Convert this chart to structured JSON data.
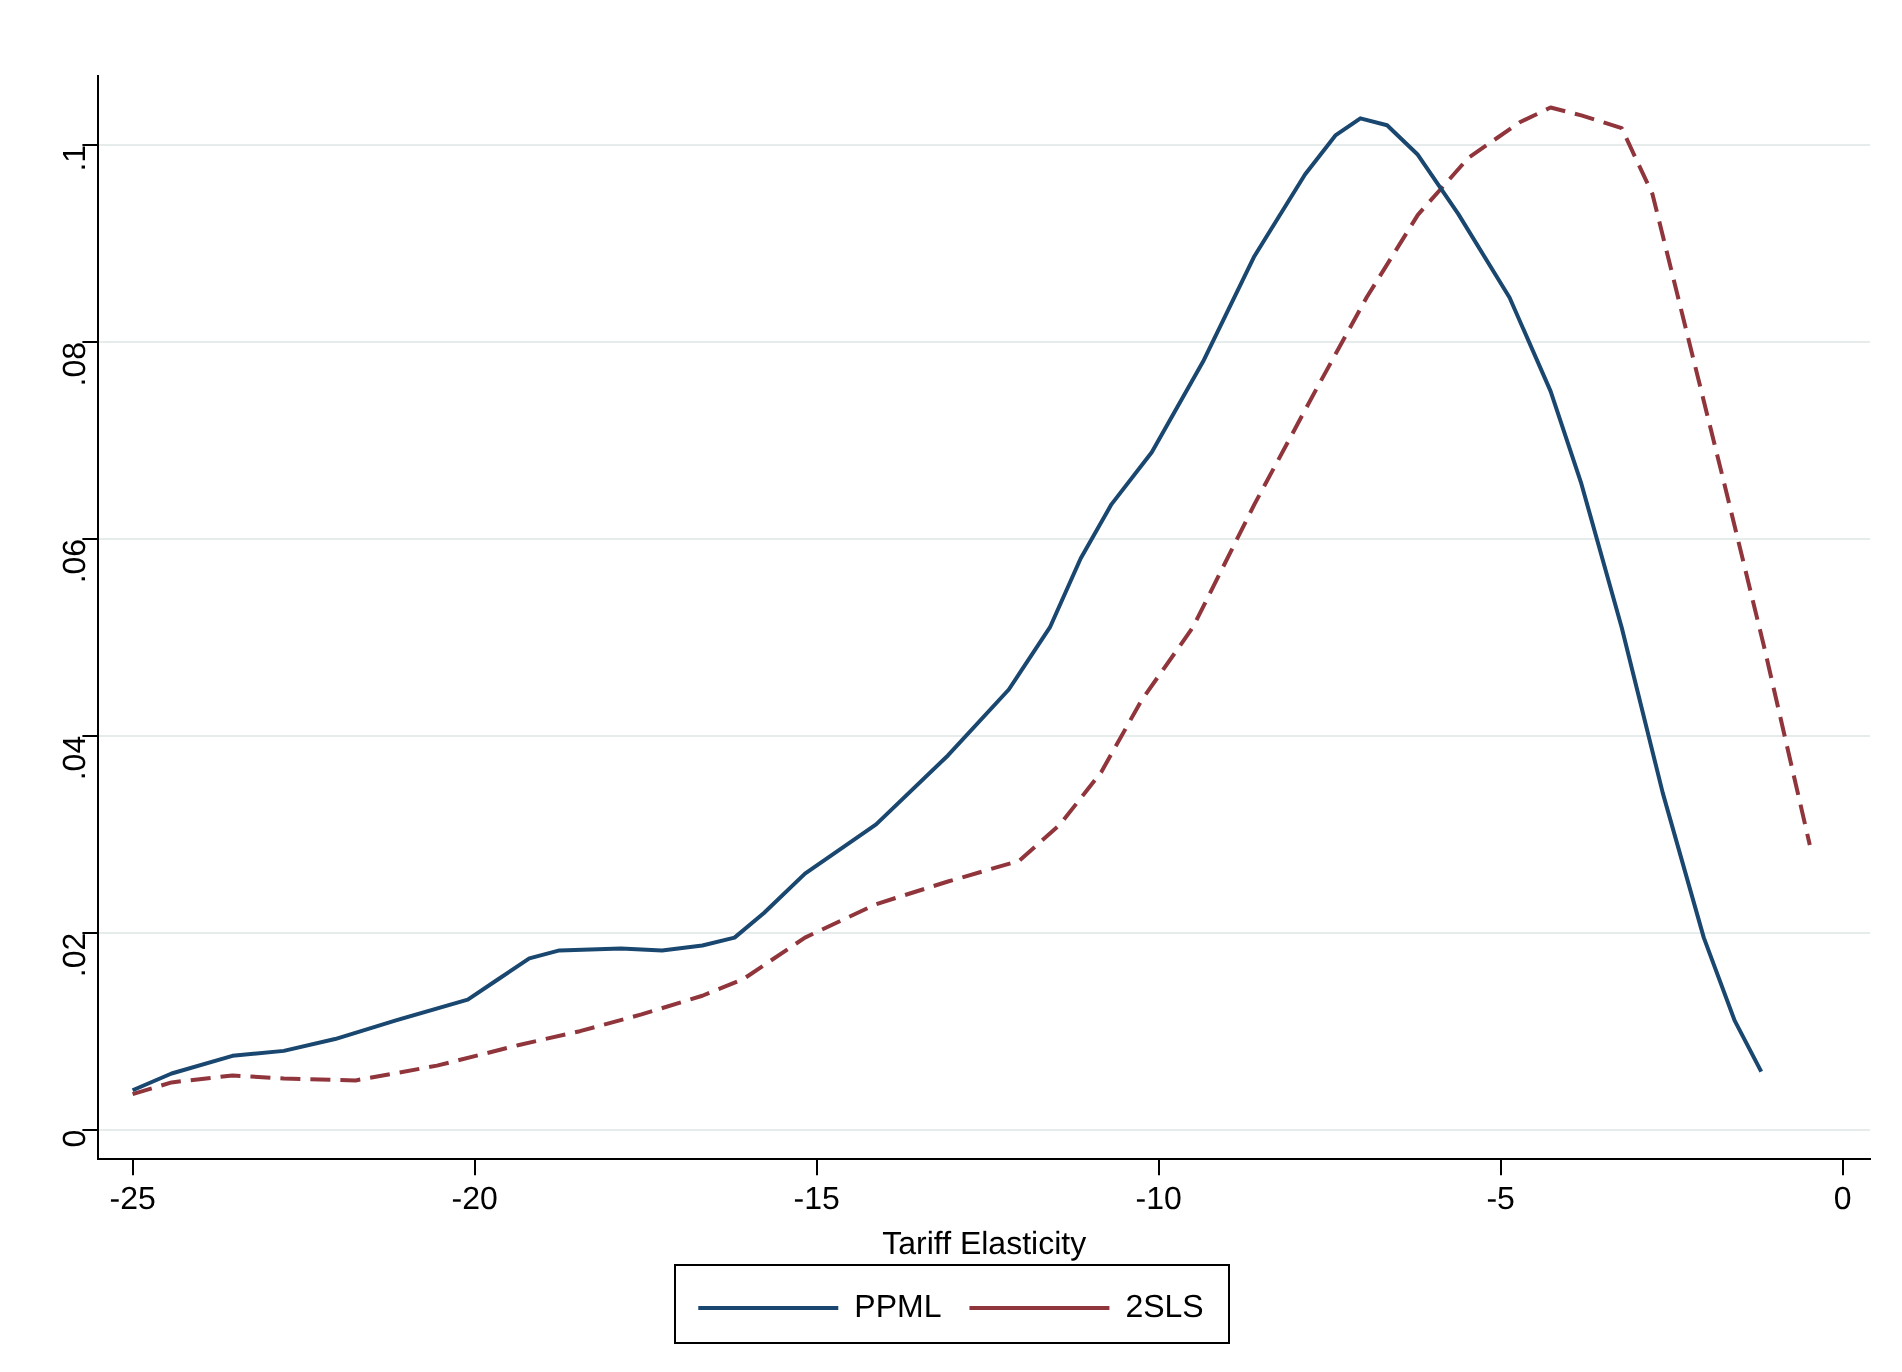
{
  "chart_data": {
    "type": "line",
    "xlabel": "Tariff Elasticity",
    "xlim": [
      -25.5,
      0.4
    ],
    "xticks": [
      -25,
      -20,
      -15,
      -10,
      -5,
      0
    ],
    "ylim": [
      -0.003,
      0.107
    ],
    "yticks": [
      {
        "value": 0,
        "label": "0"
      },
      {
        "value": 0.02,
        "label": ".02"
      },
      {
        "value": 0.04,
        "label": ".04"
      },
      {
        "value": 0.06,
        "label": ".06"
      },
      {
        "value": 0.08,
        "label": ".08"
      },
      {
        "value": 0.1,
        "label": ".1"
      }
    ],
    "grid": "y",
    "legend": "bottom",
    "marker": "none",
    "series": [
      {
        "name": "PPML",
        "color": "#1a476f",
        "line_style": "solid",
        "x": [
          -25,
          -24.43,
          -23.54,
          -22.79,
          -22.04,
          -21.15,
          -20.1,
          -19.65,
          -19.2,
          -18.76,
          -17.86,
          -17.26,
          -16.67,
          -16.2,
          -15.77,
          -15.17,
          -14.13,
          -13.08,
          -12.19,
          -11.59,
          -11.14,
          -10.69,
          -10.1,
          -9.35,
          -8.6,
          -7.86,
          -7.41,
          -7.05,
          -6.66,
          -6.21,
          -5.62,
          -4.87,
          -4.27,
          -3.82,
          -3.23,
          -2.63,
          -2.03,
          -1.58,
          -1.19
        ],
        "values": [
          0.004,
          0.0057,
          0.0075,
          0.008,
          0.0092,
          0.0111,
          0.0132,
          0.0153,
          0.0174,
          0.0182,
          0.0184,
          0.0182,
          0.0187,
          0.0195,
          0.022,
          0.026,
          0.031,
          0.038,
          0.0447,
          0.051,
          0.058,
          0.0635,
          0.0688,
          0.078,
          0.0887,
          0.097,
          0.101,
          0.1027,
          0.102,
          0.099,
          0.093,
          0.0845,
          0.075,
          0.0656,
          0.051,
          0.0342,
          0.0195,
          0.0111,
          0.0059
        ]
      },
      {
        "name": "2SLS",
        "color": "#90353b",
        "line_style": "dashed",
        "x": [
          -25,
          -24.43,
          -23.54,
          -22.79,
          -21.74,
          -20.55,
          -19.35,
          -18.46,
          -17.56,
          -16.67,
          -16.07,
          -15.17,
          -14.13,
          -13.08,
          -12.04,
          -11.44,
          -10.84,
          -10.25,
          -9.5,
          -8.6,
          -7.71,
          -6.96,
          -6.21,
          -5.47,
          -4.72,
          -4.27,
          -3.82,
          -3.23,
          -2.78,
          -2.33,
          -1.73,
          -1.14,
          -0.48
        ],
        "values": [
          0.0036,
          0.0048,
          0.0055,
          0.0052,
          0.005,
          0.0065,
          0.0086,
          0.01,
          0.0117,
          0.0136,
          0.0153,
          0.0195,
          0.0229,
          0.0252,
          0.0273,
          0.031,
          0.0363,
          0.0436,
          0.051,
          0.0635,
          0.075,
          0.0845,
          0.0929,
          0.0987,
          0.1023,
          0.1038,
          0.103,
          0.1017,
          0.095,
          0.0824,
          0.0656,
          0.0488,
          0.0289
        ]
      }
    ]
  }
}
